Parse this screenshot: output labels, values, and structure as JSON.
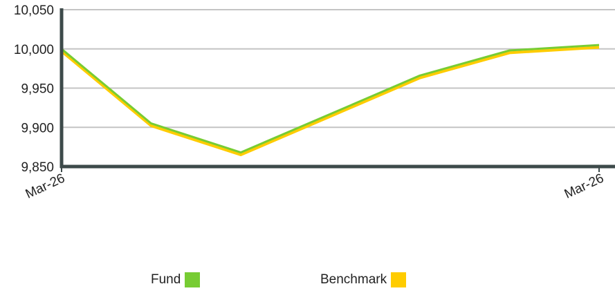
{
  "chart_data": {
    "type": "line",
    "x": [
      "Mar-26",
      "",
      "",
      "",
      "",
      "",
      "Mar-26"
    ],
    "x_tick_labels": [
      "Mar-26",
      "Mar-26"
    ],
    "series": [
      {
        "name": "Fund",
        "color": "#77cc33",
        "values": [
          10000,
          9905,
          9868,
          9917,
          9966,
          9998,
          10005
        ]
      },
      {
        "name": "Benchmark",
        "color": "#ffcc00",
        "values": [
          9997,
          9902,
          9865,
          9914,
          9963,
          9995,
          10002
        ]
      }
    ],
    "ylim": [
      9850,
      10050
    ],
    "yticks": [
      9850,
      9900,
      9950,
      10000,
      10050
    ],
    "ytick_labels": [
      "9,850",
      "9,900",
      "9,950",
      "10,000",
      "10,050"
    ],
    "grid": true,
    "legend_position": "bottom"
  },
  "legend": {
    "items": [
      {
        "label": "Fund",
        "color": "#77cc33"
      },
      {
        "label": "Benchmark",
        "color": "#ffcc00"
      }
    ]
  }
}
